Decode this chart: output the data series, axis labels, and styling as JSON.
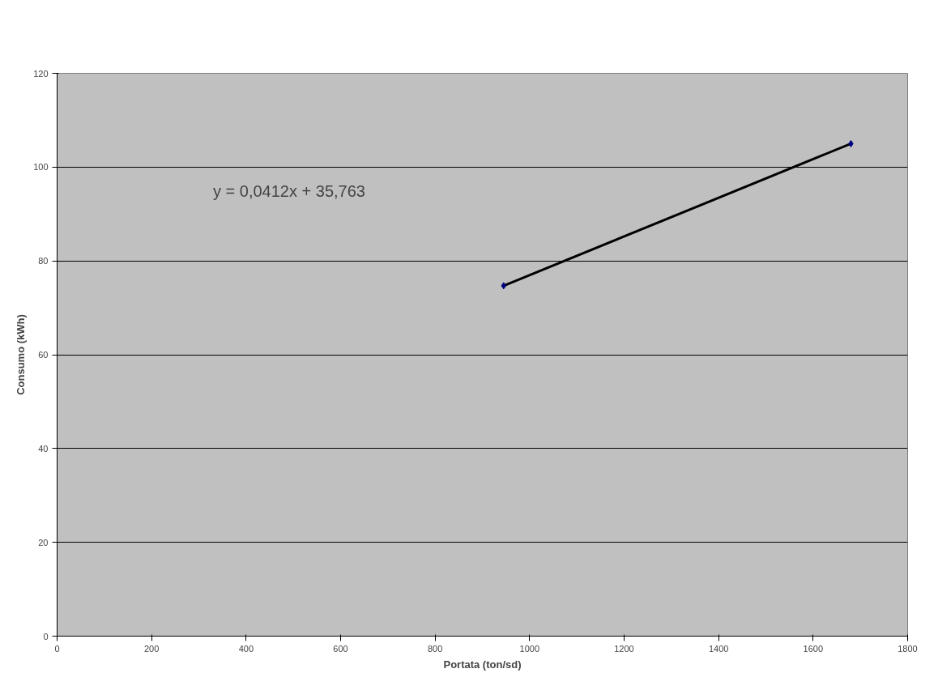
{
  "chart_data": {
    "type": "scatter",
    "xlabel": "Portata (ton/sd)",
    "ylabel": "Consumo (kWh)",
    "annotations": [
      "y = 0,0412x + 35,763"
    ],
    "series": [
      {
        "type": "line",
        "color": "#000000",
        "marker": "none",
        "values": [
          74.7,
          105
        ]
      },
      {
        "color": "#000080",
        "marker": "diamond",
        "values": [
          74.7,
          105
        ]
      }
    ],
    "x": [
      945,
      1680
    ],
    "xlim": [
      0,
      1800
    ],
    "xticks": [
      0,
      200,
      400,
      600,
      800,
      1000,
      1200,
      1400,
      1600,
      1800
    ],
    "ylim": [
      0,
      120
    ],
    "yticks": [
      0,
      20,
      40,
      60,
      80,
      100,
      120
    ],
    "grid": "y"
  }
}
